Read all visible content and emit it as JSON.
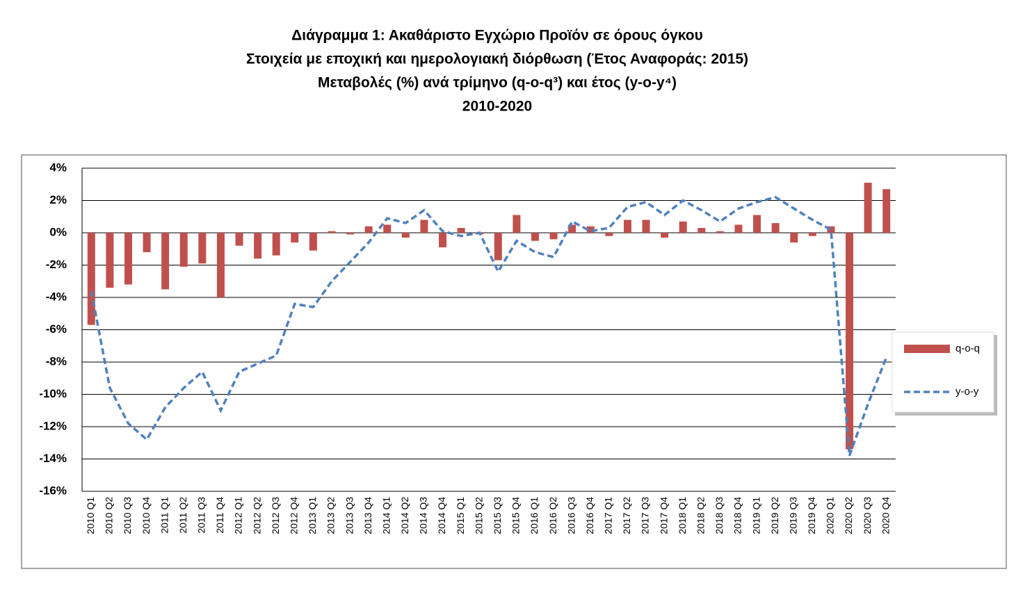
{
  "chart_data": {
    "type": "bar_line",
    "title": [
      "Διάγραμμα 1: Ακαθάριστο Εγχώριο Προϊόν σε όρους όγκου",
      "Στοιχεία με εποχική και ημερολογιακή διόρθωση (Έτος Αναφοράς: 2015)",
      "Μεταβολές (%) ανά τρίμηνο (q-o-q³) και έτος (y-o-y⁴)",
      "2010-2020"
    ],
    "categories": [
      "2010 Q1",
      "2010 Q2",
      "2010 Q3",
      "2010 Q4",
      "2011 Q1",
      "2011 Q2",
      "2011 Q3",
      "2011 Q4",
      "2012 Q1",
      "2012 Q2",
      "2012 Q3",
      "2012 Q4",
      "2013 Q1",
      "2013 Q2",
      "2013 Q3",
      "2013 Q4",
      "2014 Q1",
      "2014 Q2",
      "2014 Q3",
      "2014 Q4",
      "2015 Q1",
      "2015 Q2",
      "2015 Q3",
      "2015 Q4",
      "2016 Q1",
      "2016 Q2",
      "2016 Q3",
      "2016 Q4",
      "2017 Q1",
      "2017 Q2",
      "2017 Q3",
      "2017 Q4",
      "2018 Q1",
      "2018 Q2",
      "2018 Q3",
      "2018 Q4",
      "2019 Q1",
      "2019 Q2",
      "2019 Q3",
      "2019 Q4",
      "2020 Q1",
      "2020 Q2",
      "2020 Q3",
      "2020 Q4"
    ],
    "series": [
      {
        "name": "q-o-q",
        "type": "bar",
        "color": "#c0504d",
        "values": [
          -5.7,
          -3.4,
          -3.2,
          -1.2,
          -3.5,
          -2.1,
          -1.9,
          -4.0,
          -0.8,
          -1.6,
          -1.4,
          -0.6,
          -1.1,
          0.1,
          -0.1,
          0.4,
          0.5,
          -0.3,
          0.8,
          -0.9,
          0.3,
          -0.1,
          -1.7,
          1.1,
          -0.5,
          -0.4,
          0.5,
          0.4,
          -0.2,
          0.8,
          0.8,
          -0.3,
          0.7,
          0.3,
          0.1,
          0.5,
          1.1,
          0.6,
          -0.6,
          -0.2,
          0.4,
          -13.4,
          3.1,
          2.7
        ]
      },
      {
        "name": "y-o-y",
        "type": "line",
        "color": "#4f81bd",
        "values": [
          -3.6,
          -9.6,
          -11.8,
          -12.8,
          -10.8,
          -9.6,
          -8.6,
          -11.0,
          -8.6,
          -8.1,
          -7.6,
          -4.4,
          -4.6,
          -3.0,
          -1.8,
          -0.6,
          0.9,
          0.6,
          1.4,
          0.1,
          -0.2,
          0.0,
          -2.4,
          -0.5,
          -1.2,
          -1.5,
          0.7,
          0.1,
          0.3,
          1.6,
          1.9,
          1.1,
          2.0,
          1.4,
          0.7,
          1.5,
          1.9,
          2.2,
          1.5,
          0.8,
          0.2,
          -13.8,
          -10.6,
          -7.7
        ]
      }
    ],
    "ylim": [
      -16,
      4
    ],
    "yticks": [
      {
        "value": -16,
        "label": "-16%"
      },
      {
        "value": -14,
        "label": "-14%"
      },
      {
        "value": -12,
        "label": "-12%"
      },
      {
        "value": -10,
        "label": "-10%"
      },
      {
        "value": -8,
        "label": "-8%"
      },
      {
        "value": -6,
        "label": "-6%"
      },
      {
        "value": -4,
        "label": "-4%"
      },
      {
        "value": -2,
        "label": "-2%"
      },
      {
        "value": 0,
        "label": "0%"
      },
      {
        "value": 2,
        "label": "2%"
      },
      {
        "value": 4,
        "label": "4%"
      }
    ],
    "grid": true,
    "legend": "right"
  }
}
